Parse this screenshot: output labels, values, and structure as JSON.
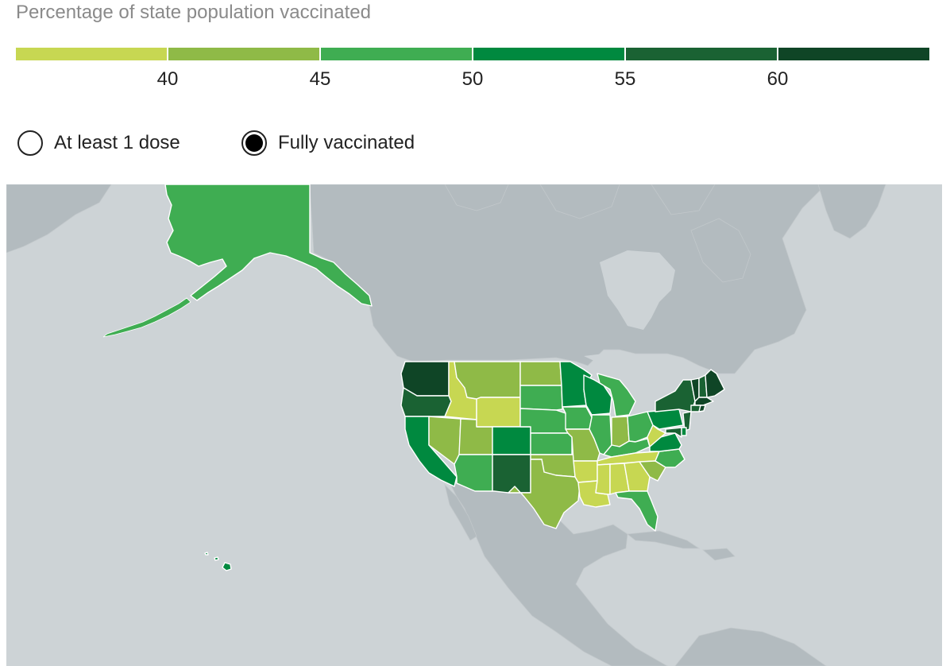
{
  "legend": {
    "title": "Percentage of state population vaccinated",
    "scale_colors": [
      "#c7d752",
      "#8fba47",
      "#3fad52",
      "#00893f",
      "#1a6233",
      "#0f4526"
    ],
    "ticks": [
      "40",
      "45",
      "50",
      "55",
      "60"
    ]
  },
  "toggles": [
    {
      "label": "At least 1 dose",
      "selected": false
    },
    {
      "label": "Fully vaccinated",
      "selected": true
    }
  ],
  "colors": {
    "water": "#cdd3d6",
    "land": "#b3bbbf",
    "state_border": "#ffffff"
  },
  "states": {
    "WA": 5,
    "OR": 4,
    "CA": 3,
    "ID": 0,
    "NV": 1,
    "UT": 1,
    "AZ": 2,
    "MT": 1,
    "WY": 0,
    "CO": 3,
    "NM": 4,
    "ND": 1,
    "SD": 2,
    "NE": 2,
    "KS": 2,
    "OK": 1,
    "TX": 1,
    "MN": 3,
    "IA": 2,
    "MO": 1,
    "AR": 0,
    "LA": 0,
    "WI": 3,
    "IL": 2,
    "MI": 2,
    "IN": 1,
    "OH": 2,
    "KY": 2,
    "TN": 0,
    "MS": 0,
    "AL": 0,
    "GA": 0,
    "FL": 2,
    "SC": 1,
    "NC": 2,
    "VA": 3,
    "WV": 0,
    "PA": 3,
    "NY": 4,
    "NJ": 4,
    "DE": 3,
    "MD": 4,
    "VT": 5,
    "NH": 4,
    "ME": 5,
    "MA": 5,
    "CT": 4,
    "RI": 5,
    "AK": 2,
    "HI": 3
  }
}
